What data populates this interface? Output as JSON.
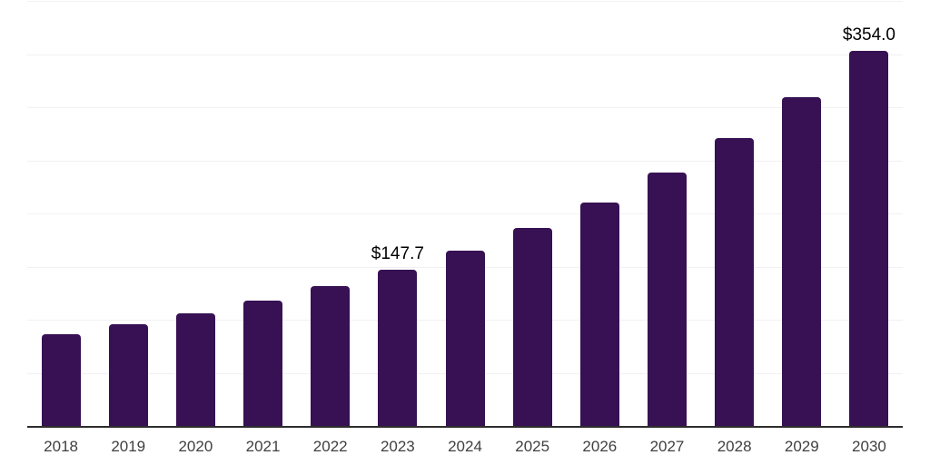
{
  "chart_data": {
    "type": "bar",
    "title": "",
    "xlabel": "",
    "ylabel": "",
    "categories": [
      "2018",
      "2019",
      "2020",
      "2021",
      "2022",
      "2023",
      "2024",
      "2025",
      "2026",
      "2027",
      "2028",
      "2029",
      "2030"
    ],
    "values": [
      87.0,
      96.5,
      106.8,
      118.7,
      132.4,
      147.7,
      165.5,
      187.0,
      211.0,
      239.2,
      271.6,
      310.0,
      354.0
    ],
    "data_labels": [
      "",
      "",
      "",
      "",
      "",
      "$147.7",
      "",
      "",
      "",
      "",
      "",
      "",
      "$354.0"
    ],
    "ylim": [
      0,
      400
    ],
    "gridline_step": 50,
    "grid": "horizontal",
    "legend_position": "none",
    "bar_corner_radius_px": 4
  },
  "colors": {
    "background": "#ffffff",
    "bar": "#371153",
    "gridline": "#f1f1f3",
    "axis_line": "#2d2d2d",
    "tick_label": "#404040",
    "data_label": "#000000"
  }
}
